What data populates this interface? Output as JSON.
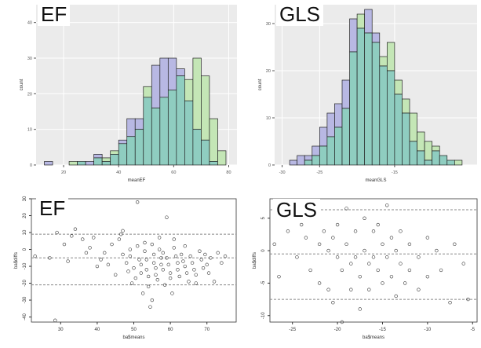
{
  "colors": {
    "panel_bg": "#ebebeb",
    "grid": "#ffffff",
    "fill_a": "#b8b8e3",
    "fill_b": "#c4e6b6",
    "fill_overlap": "#8fcdc0",
    "point": "#333333",
    "ref_line": "#888888"
  },
  "chart_data": [
    {
      "type": "histogram",
      "label": "EF",
      "xlabel": "meanEF",
      "ylabel": "count",
      "xlim": [
        10,
        83
      ],
      "ylim": [
        0,
        45
      ],
      "xticks": [
        20,
        40,
        60,
        80
      ],
      "yticks": [
        0,
        10,
        20,
        30,
        40
      ],
      "bin_width": 3,
      "bin_starts": [
        13,
        16,
        19,
        22,
        25,
        28,
        31,
        34,
        37,
        40,
        43,
        46,
        49,
        52,
        55,
        58,
        61,
        64,
        67,
        70,
        73,
        76
      ],
      "series": [
        {
          "values": [
            1,
            0,
            0,
            0,
            1,
            1,
            3,
            1,
            3,
            7,
            13,
            13,
            19,
            28,
            30,
            30,
            27,
            18,
            10,
            7,
            1,
            0
          ]
        },
        {
          "values": [
            0,
            0,
            0,
            1,
            1,
            0,
            2,
            2,
            4,
            6,
            8,
            10,
            22,
            16,
            19,
            21,
            25,
            24,
            30,
            25,
            13,
            4
          ]
        }
      ],
      "grid": true
    },
    {
      "type": "histogram",
      "label": "GLS",
      "xlabel": "meanGLS",
      "ylabel": "count",
      "xlim": [
        -31,
        -4
      ],
      "ylim": [
        0,
        34
      ],
      "xticks": [
        -30,
        -25,
        -15
      ],
      "yticks": [
        0,
        10,
        20,
        30
      ],
      "bin_width": 1,
      "bin_starts": [
        -29,
        -28,
        -27,
        -26,
        -25,
        -24,
        -23,
        -22,
        -21,
        -20,
        -19,
        -18,
        -17,
        -16,
        -15,
        -14,
        -13,
        -12,
        -11,
        -10,
        -9,
        -8,
        -7
      ],
      "series": [
        {
          "values": [
            1,
            2,
            2,
            4,
            8,
            11,
            13,
            18,
            31,
            29,
            33,
            28,
            21,
            20,
            15,
            11,
            5,
            3,
            1,
            3,
            2,
            1,
            0
          ]
        },
        {
          "values": [
            0,
            0,
            1,
            2,
            4,
            6,
            8,
            12,
            24,
            32,
            28,
            26,
            23,
            26,
            18,
            14,
            11,
            7,
            5,
            4,
            2,
            1,
            1
          ]
        }
      ],
      "grid": true
    },
    {
      "type": "scatter",
      "label": "EF",
      "xlabel": "ba$means",
      "ylabel": "ba$diffs",
      "xlim": [
        22,
        78
      ],
      "ylim": [
        -43,
        30
      ],
      "xticks": [
        30,
        40,
        50,
        60,
        70
      ],
      "yticks": [
        -40,
        -30,
        -20,
        -10,
        0,
        10,
        20,
        30
      ],
      "hlines": [
        9,
        -5,
        -21
      ],
      "points": [
        [
          28.5,
          -42
        ],
        [
          23,
          -4
        ],
        [
          27,
          -5
        ],
        [
          29,
          10
        ],
        [
          31,
          3
        ],
        [
          32,
          -7
        ],
        [
          33,
          8
        ],
        [
          34,
          12
        ],
        [
          36,
          6
        ],
        [
          37,
          -2
        ],
        [
          38,
          1
        ],
        [
          39,
          7
        ],
        [
          40,
          -10
        ],
        [
          41,
          -6
        ],
        [
          42,
          -2
        ],
        [
          43,
          -9
        ],
        [
          44,
          3
        ],
        [
          45,
          -15
        ],
        [
          46,
          6
        ],
        [
          46.5,
          9
        ],
        [
          47,
          11
        ],
        [
          47,
          -3
        ],
        [
          48,
          -8
        ],
        [
          48.5,
          -13
        ],
        [
          49,
          0
        ],
        [
          49,
          -4
        ],
        [
          49.5,
          -20
        ],
        [
          50,
          -11
        ],
        [
          50.5,
          -17
        ],
        [
          51,
          28
        ],
        [
          51,
          2
        ],
        [
          51.5,
          -6
        ],
        [
          52,
          -9
        ],
        [
          52,
          -14
        ],
        [
          52.5,
          -26
        ],
        [
          53,
          4
        ],
        [
          53,
          -1
        ],
        [
          53.5,
          -6
        ],
        [
          53.5,
          -12
        ],
        [
          54,
          -16
        ],
        [
          54,
          -22
        ],
        [
          54.5,
          -34
        ],
        [
          55,
          -30
        ],
        [
          55,
          3
        ],
        [
          55.5,
          -3
        ],
        [
          55.5,
          -8
        ],
        [
          56,
          -11
        ],
        [
          56,
          -15
        ],
        [
          56.5,
          -18
        ],
        [
          57,
          7
        ],
        [
          57,
          0
        ],
        [
          57.5,
          -5
        ],
        [
          57.5,
          -9
        ],
        [
          58,
          -2
        ],
        [
          58,
          -12
        ],
        [
          58.5,
          -21
        ],
        [
          59,
          19
        ],
        [
          59,
          -5
        ],
        [
          59.5,
          -9
        ],
        [
          60,
          -14
        ],
        [
          60,
          -17
        ],
        [
          60.5,
          -26
        ],
        [
          61,
          6
        ],
        [
          61,
          1
        ],
        [
          61.5,
          -4
        ],
        [
          62,
          -8
        ],
        [
          62,
          -12
        ],
        [
          62.5,
          -16
        ],
        [
          63,
          -3
        ],
        [
          63.5,
          -7
        ],
        [
          64,
          2
        ],
        [
          64,
          -10
        ],
        [
          64.5,
          -14
        ],
        [
          65,
          -19
        ],
        [
          65.5,
          -4
        ],
        [
          66,
          -8
        ],
        [
          66.5,
          -12
        ],
        [
          67,
          -15
        ],
        [
          67,
          -20
        ],
        [
          68,
          -1
        ],
        [
          68.5,
          -6
        ],
        [
          69,
          -11
        ],
        [
          69.5,
          -3
        ],
        [
          70,
          -9
        ],
        [
          70.5,
          -14
        ],
        [
          71,
          -5
        ],
        [
          72,
          -19
        ],
        [
          73,
          -2
        ],
        [
          74,
          -8
        ],
        [
          75,
          -4
        ]
      ],
      "grid": false
    },
    {
      "type": "scatter",
      "label": "GLS",
      "xlabel": "ba$means",
      "ylabel": "ba$diffs",
      "xlim": [
        -27.5,
        -4.5
      ],
      "ylim": [
        -11,
        8
      ],
      "xticks": [
        -25,
        -20,
        -15,
        -10,
        -5
      ],
      "yticks": [
        -10,
        -5,
        0,
        5
      ],
      "hlines": [
        6.3,
        -0.5,
        -7.5
      ],
      "points": [
        [
          -27,
          1
        ],
        [
          -26.5,
          -4
        ],
        [
          -25.5,
          3
        ],
        [
          -25,
          5
        ],
        [
          -24.5,
          -1
        ],
        [
          -24,
          4
        ],
        [
          -23.5,
          2
        ],
        [
          -23,
          -3
        ],
        [
          -22.5,
          6
        ],
        [
          -22,
          -5
        ],
        [
          -22,
          1
        ],
        [
          -21.5,
          3
        ],
        [
          -21,
          0
        ],
        [
          -21,
          -6
        ],
        [
          -20.5,
          2
        ],
        [
          -20.5,
          -8
        ],
        [
          -20,
          4
        ],
        [
          -20,
          -1
        ],
        [
          -19.5,
          -3
        ],
        [
          -19.5,
          -11
        ],
        [
          -19,
          6.5
        ],
        [
          -19,
          1
        ],
        [
          -18.5,
          -2
        ],
        [
          -18.5,
          -6
        ],
        [
          -18,
          3
        ],
        [
          -18,
          -1
        ],
        [
          -17.5,
          -4
        ],
        [
          -17.5,
          -9
        ],
        [
          -17,
          5
        ],
        [
          -17,
          0
        ],
        [
          -16.5,
          -2
        ],
        [
          -16.5,
          -6
        ],
        [
          -16,
          3
        ],
        [
          -16,
          -1
        ],
        [
          -15.5,
          4
        ],
        [
          -15.5,
          -3
        ],
        [
          -15,
          1
        ],
        [
          -15,
          -5
        ],
        [
          -14.5,
          7
        ],
        [
          -14.5,
          -1
        ],
        [
          -14,
          2
        ],
        [
          -14,
          -4
        ],
        [
          -13.5,
          0
        ],
        [
          -13.5,
          -7
        ],
        [
          -13,
          3
        ],
        [
          -13,
          -2
        ],
        [
          -12.5,
          -5
        ],
        [
          -12,
          1
        ],
        [
          -12,
          -3
        ],
        [
          -11,
          -1
        ],
        [
          -11,
          -6
        ],
        [
          -10,
          2
        ],
        [
          -10,
          -4
        ],
        [
          -9,
          0
        ],
        [
          -8.5,
          -3
        ],
        [
          -7.5,
          -8
        ],
        [
          -7,
          1
        ],
        [
          -6,
          -2
        ],
        [
          -5.5,
          -7.5
        ]
      ],
      "grid": false
    }
  ]
}
